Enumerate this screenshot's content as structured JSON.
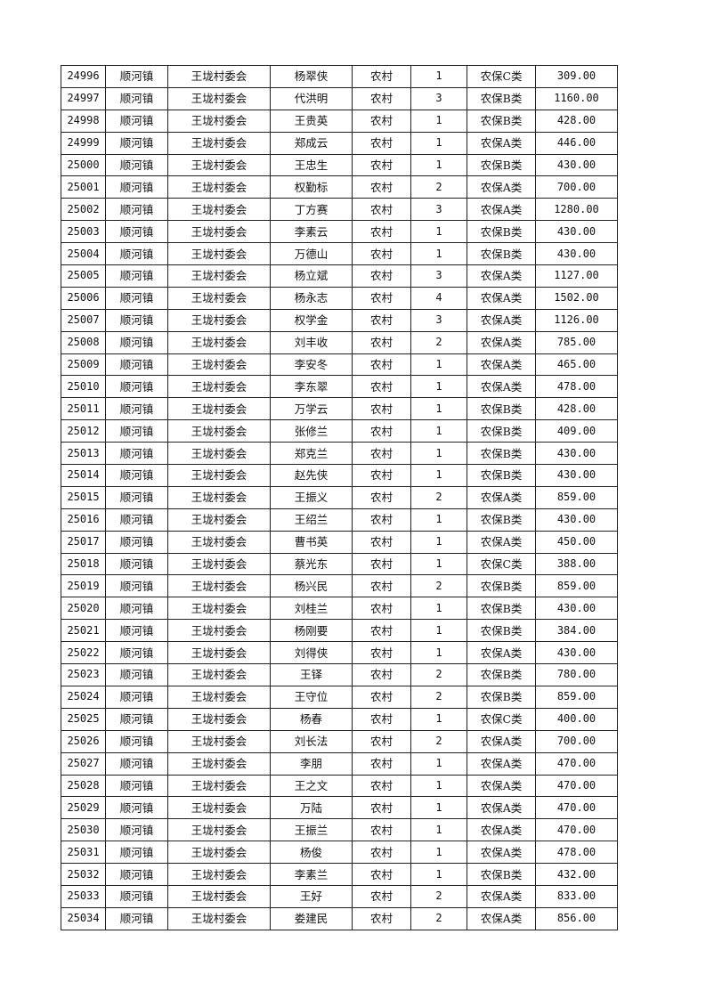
{
  "table": {
    "rows": [
      [
        "24996",
        "顺河镇",
        "王垅村委会",
        "杨翠侠",
        "农村",
        "1",
        "农保C类",
        "309.00"
      ],
      [
        "24997",
        "顺河镇",
        "王垅村委会",
        "代洪明",
        "农村",
        "3",
        "农保B类",
        "1160.00"
      ],
      [
        "24998",
        "顺河镇",
        "王垅村委会",
        "王贵英",
        "农村",
        "1",
        "农保B类",
        "428.00"
      ],
      [
        "24999",
        "顺河镇",
        "王垅村委会",
        "郑成云",
        "农村",
        "1",
        "农保A类",
        "446.00"
      ],
      [
        "25000",
        "顺河镇",
        "王垅村委会",
        "王忠生",
        "农村",
        "1",
        "农保B类",
        "430.00"
      ],
      [
        "25001",
        "顺河镇",
        "王垅村委会",
        "权勤标",
        "农村",
        "2",
        "农保A类",
        "700.00"
      ],
      [
        "25002",
        "顺河镇",
        "王垅村委会",
        "丁方赛",
        "农村",
        "3",
        "农保A类",
        "1280.00"
      ],
      [
        "25003",
        "顺河镇",
        "王垅村委会",
        "李素云",
        "农村",
        "1",
        "农保B类",
        "430.00"
      ],
      [
        "25004",
        "顺河镇",
        "王垅村委会",
        "万德山",
        "农村",
        "1",
        "农保B类",
        "430.00"
      ],
      [
        "25005",
        "顺河镇",
        "王垅村委会",
        "杨立斌",
        "农村",
        "3",
        "农保A类",
        "1127.00"
      ],
      [
        "25006",
        "顺河镇",
        "王垅村委会",
        "杨永志",
        "农村",
        "4",
        "农保A类",
        "1502.00"
      ],
      [
        "25007",
        "顺河镇",
        "王垅村委会",
        "权学金",
        "农村",
        "3",
        "农保A类",
        "1126.00"
      ],
      [
        "25008",
        "顺河镇",
        "王垅村委会",
        "刘丰收",
        "农村",
        "2",
        "农保A类",
        "785.00"
      ],
      [
        "25009",
        "顺河镇",
        "王垅村委会",
        "李安冬",
        "农村",
        "1",
        "农保A类",
        "465.00"
      ],
      [
        "25010",
        "顺河镇",
        "王垅村委会",
        "李东翠",
        "农村",
        "1",
        "农保A类",
        "478.00"
      ],
      [
        "25011",
        "顺河镇",
        "王垅村委会",
        "万学云",
        "农村",
        "1",
        "农保B类",
        "428.00"
      ],
      [
        "25012",
        "顺河镇",
        "王垅村委会",
        "张修兰",
        "农村",
        "1",
        "农保B类",
        "409.00"
      ],
      [
        "25013",
        "顺河镇",
        "王垅村委会",
        "郑克兰",
        "农村",
        "1",
        "农保B类",
        "430.00"
      ],
      [
        "25014",
        "顺河镇",
        "王垅村委会",
        "赵先侠",
        "农村",
        "1",
        "农保B类",
        "430.00"
      ],
      [
        "25015",
        "顺河镇",
        "王垅村委会",
        "王振义",
        "农村",
        "2",
        "农保A类",
        "859.00"
      ],
      [
        "25016",
        "顺河镇",
        "王垅村委会",
        "王绍兰",
        "农村",
        "1",
        "农保B类",
        "430.00"
      ],
      [
        "25017",
        "顺河镇",
        "王垅村委会",
        "曹书英",
        "农村",
        "1",
        "农保A类",
        "450.00"
      ],
      [
        "25018",
        "顺河镇",
        "王垅村委会",
        "蔡光东",
        "农村",
        "1",
        "农保C类",
        "388.00"
      ],
      [
        "25019",
        "顺河镇",
        "王垅村委会",
        "杨兴民",
        "农村",
        "2",
        "农保B类",
        "859.00"
      ],
      [
        "25020",
        "顺河镇",
        "王垅村委会",
        "刘桂兰",
        "农村",
        "1",
        "农保B类",
        "430.00"
      ],
      [
        "25021",
        "顺河镇",
        "王垅村委会",
        "杨刚要",
        "农村",
        "1",
        "农保B类",
        "384.00"
      ],
      [
        "25022",
        "顺河镇",
        "王垅村委会",
        "刘得侠",
        "农村",
        "1",
        "农保A类",
        "430.00"
      ],
      [
        "25023",
        "顺河镇",
        "王垅村委会",
        "王铎",
        "农村",
        "2",
        "农保B类",
        "780.00"
      ],
      [
        "25024",
        "顺河镇",
        "王垅村委会",
        "王守位",
        "农村",
        "2",
        "农保B类",
        "859.00"
      ],
      [
        "25025",
        "顺河镇",
        "王垅村委会",
        "杨春",
        "农村",
        "1",
        "农保C类",
        "400.00"
      ],
      [
        "25026",
        "顺河镇",
        "王垅村委会",
        "刘长法",
        "农村",
        "2",
        "农保A类",
        "700.00"
      ],
      [
        "25027",
        "顺河镇",
        "王垅村委会",
        "李朋",
        "农村",
        "1",
        "农保A类",
        "470.00"
      ],
      [
        "25028",
        "顺河镇",
        "王垅村委会",
        "王之文",
        "农村",
        "1",
        "农保A类",
        "470.00"
      ],
      [
        "25029",
        "顺河镇",
        "王垅村委会",
        "万陆",
        "农村",
        "1",
        "农保A类",
        "470.00"
      ],
      [
        "25030",
        "顺河镇",
        "王垅村委会",
        "王振兰",
        "农村",
        "1",
        "农保A类",
        "470.00"
      ],
      [
        "25031",
        "顺河镇",
        "王垅村委会",
        "杨俊",
        "农村",
        "1",
        "农保A类",
        "478.00"
      ],
      [
        "25032",
        "顺河镇",
        "王垅村委会",
        "李素兰",
        "农村",
        "1",
        "农保B类",
        "432.00"
      ],
      [
        "25033",
        "顺河镇",
        "王垅村委会",
        "王好",
        "农村",
        "2",
        "农保A类",
        "833.00"
      ],
      [
        "25034",
        "顺河镇",
        "王垅村委会",
        "娄建民",
        "农村",
        "2",
        "农保A类",
        "856.00"
      ]
    ]
  }
}
